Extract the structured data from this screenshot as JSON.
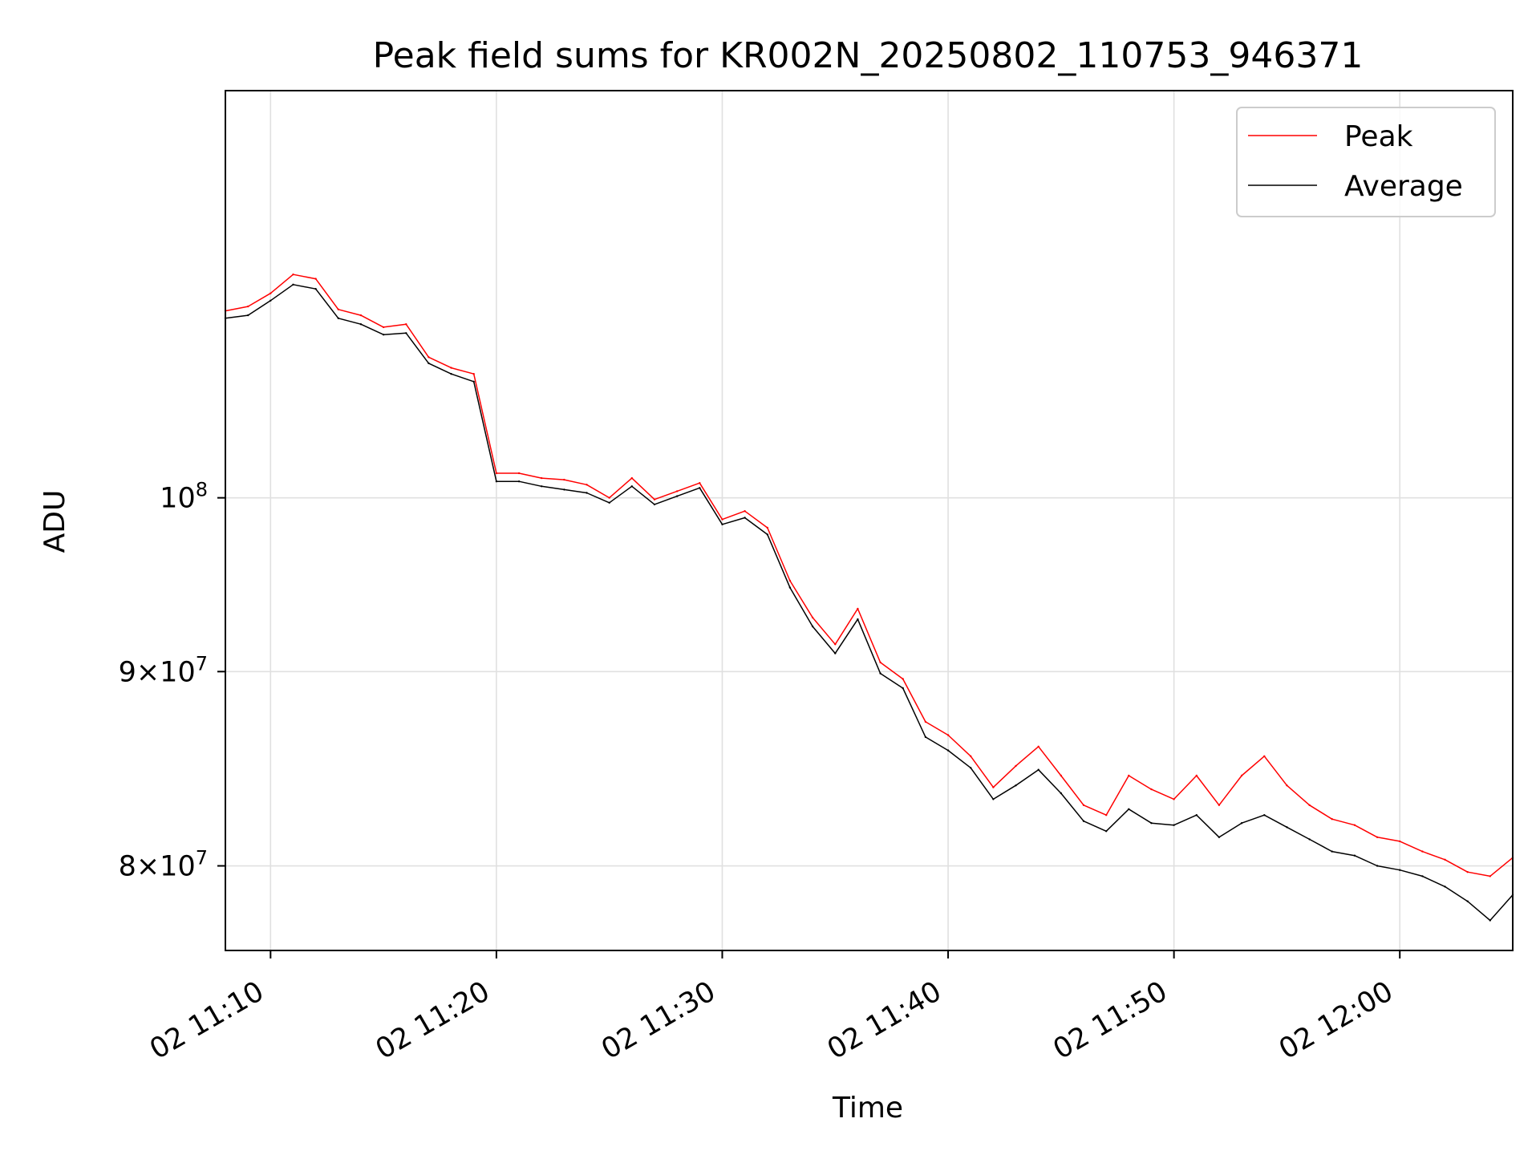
{
  "chart_data": {
    "type": "line",
    "title": "Peak field sums for KR002N_20250802_110753_946371",
    "xlabel": "Time",
    "ylabel": "ADU",
    "x_tick_labels": [
      "02 11:10",
      "02 11:20",
      "02 11:30",
      "02 11:40",
      "02 11:50",
      "02 12:00"
    ],
    "y_tick_labels": [
      {
        "value": 80000000,
        "mantissa": "8",
        "base": "10",
        "exp": "7"
      },
      {
        "value": 90000000,
        "mantissa": "9",
        "base": "10",
        "exp": "7"
      },
      {
        "value": 100000000,
        "mantissa": "",
        "base": "10",
        "exp": "8"
      }
    ],
    "y_scale": "log",
    "ylim": [
      76000000,
      128000000
    ],
    "xlim": [
      "2025-08-02 11:08",
      "2025-08-02 12:05"
    ],
    "grid": true,
    "legend_position": "top-right",
    "x": [
      "11:08",
      "11:09",
      "11:10",
      "11:11",
      "11:12",
      "11:13",
      "11:14",
      "11:15",
      "11:16",
      "11:17",
      "11:18",
      "11:19",
      "11:20",
      "11:21",
      "11:22",
      "11:23",
      "11:24",
      "11:25",
      "11:26",
      "11:27",
      "11:28",
      "11:29",
      "11:30",
      "11:31",
      "11:32",
      "11:33",
      "11:34",
      "11:35",
      "11:36",
      "11:37",
      "11:38",
      "11:39",
      "11:40",
      "11:41",
      "11:42",
      "11:43",
      "11:44",
      "11:45",
      "11:46",
      "11:47",
      "11:48",
      "11:49",
      "11:50",
      "11:51",
      "11:52",
      "11:53",
      "11:54",
      "11:55",
      "11:56",
      "11:57",
      "11:58",
      "11:59",
      "12:00",
      "12:01",
      "12:02",
      "12:03",
      "12:04",
      "12:05"
    ],
    "series": [
      {
        "name": "Peak",
        "color": "#ff0000",
        "values": [
          112000000,
          112300000,
          113200000,
          114500000,
          114200000,
          112100000,
          111700000,
          110900000,
          111100000,
          108900000,
          108200000,
          107800000,
          101500000,
          101500000,
          101200000,
          101100000,
          100800000,
          100000000,
          101200000,
          99900000,
          100400000,
          100900000,
          98700000,
          99200000,
          98200000,
          95100000,
          93000000,
          91500000,
          93500000,
          90500000,
          89600000,
          87300000,
          86600000,
          85500000,
          83900000,
          85000000,
          86000000,
          84500000,
          83000000,
          82500000,
          84500000,
          83800000,
          83300000,
          84500000,
          83000000,
          84500000,
          85500000,
          84000000,
          83000000,
          82300000,
          82000000,
          81400000,
          81200000,
          80700000,
          80300000,
          79700000,
          79500000,
          80400000
        ]
      },
      {
        "name": "Average",
        "color": "#000000",
        "values": [
          111500000,
          111700000,
          112700000,
          113800000,
          113500000,
          111500000,
          111100000,
          110400000,
          110500000,
          108500000,
          107800000,
          107300000,
          101000000,
          101000000,
          100700000,
          100500000,
          100300000,
          99700000,
          100700000,
          99600000,
          100100000,
          100600000,
          98400000,
          98800000,
          97800000,
          94700000,
          92500000,
          91000000,
          92900000,
          89900000,
          89100000,
          86500000,
          85800000,
          84900000,
          83300000,
          84000000,
          84800000,
          83600000,
          82200000,
          81700000,
          82800000,
          82100000,
          82000000,
          82500000,
          81400000,
          82100000,
          82500000,
          81900000,
          81300000,
          80700000,
          80500000,
          80000000,
          79800000,
          79500000,
          79000000,
          78300000,
          77400000,
          78600000
        ]
      }
    ]
  }
}
